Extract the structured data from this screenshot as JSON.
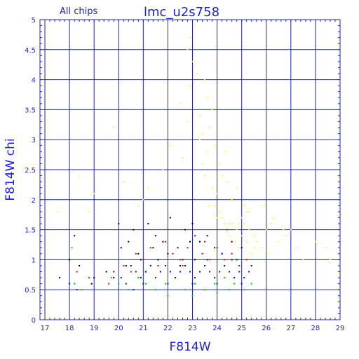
{
  "chart_data": {
    "type": "scatter",
    "title": "lmc_u2s758",
    "subtitle": "All chips",
    "xlabel": "F814W",
    "ylabel": "F814W chi",
    "xlim": [
      16.8,
      29
    ],
    "ylim": [
      0,
      5
    ],
    "xticks": [
      "17",
      "18",
      "19",
      "20",
      "21",
      "22",
      "23",
      "24",
      "25",
      "26",
      "27",
      "28",
      "29"
    ],
    "yticks": [
      "0",
      "0.5",
      "1",
      "1.5",
      "2",
      "2.5",
      "3",
      "3.5",
      "4",
      "4.5",
      "5"
    ],
    "grid": true,
    "colors": {
      "axis": "#1f1fd6",
      "grid": "#1f1fd6",
      "text": "#1f1fd6",
      "blue_points": "#0000ff",
      "green_points": "#00cc00",
      "red_points": "#ff0000",
      "black_points": "#000000",
      "yellow_points": "#ffff33"
    },
    "series": [
      {
        "color": "yellow",
        "x": [
          22.1,
          22.5,
          22.8,
          23.0,
          23.2,
          23.3,
          23.4,
          23.5,
          23.6,
          23.7,
          23.8,
          23.9,
          24.0,
          24.1,
          24.2,
          24.3,
          24.4,
          24.5,
          24.6,
          24.7,
          24.8,
          24.9,
          25.0,
          25.1,
          25.2,
          25.3,
          25.4,
          25.5,
          25.6,
          25.8,
          26.0,
          26.2,
          26.5,
          26.8,
          27.2,
          27.5,
          28.0,
          28.4,
          28.6,
          21.0,
          20.2,
          19.8,
          19.0,
          18.8,
          18.4,
          17.5,
          22.9,
          23.1,
          23.5,
          22.8,
          23.6,
          24.1,
          24.4,
          23.9,
          24.6,
          25.3,
          25.9,
          26.3,
          27.0,
          24.8,
          25.1,
          24.2,
          23.3,
          22.6,
          21.8,
          21.2,
          20.8,
          24.0,
          23.7,
          24.5,
          25.0,
          25.5,
          26.1,
          26.7,
          24.3,
          23.8,
          22.9,
          23.4,
          24.9,
          25.2
        ],
        "y": [
          2.9,
          3.6,
          4.5,
          4.3,
          4.1,
          3.0,
          2.6,
          2.4,
          2.8,
          3.2,
          2.2,
          1.9,
          2.1,
          1.8,
          1.7,
          1.6,
          1.5,
          1.4,
          1.6,
          1.3,
          1.5,
          1.2,
          1.4,
          1.6,
          1.3,
          1.5,
          1.1,
          1.4,
          1.3,
          1.2,
          1.5,
          1.6,
          1.3,
          1.4,
          1.2,
          1.0,
          1.3,
          1.2,
          1.0,
          2.0,
          2.3,
          3.2,
          2.1,
          1.8,
          2.4,
          1.8,
          4.7,
          4.9,
          4.0,
          3.3,
          3.7,
          2.6,
          2.3,
          2.9,
          2.0,
          1.8,
          1.9,
          1.7,
          1.5,
          2.2,
          1.9,
          2.4,
          3.4,
          2.7,
          2.5,
          2.2,
          1.9,
          1.7,
          1.9,
          1.6,
          1.7,
          1.2,
          1.1,
          1.5,
          2.8,
          3.5,
          3.9,
          3.1,
          1.6,
          1.8
        ]
      },
      {
        "color": "black",
        "x": [
          17.6,
          18.0,
          18.2,
          18.4,
          18.9,
          19.5,
          20.1,
          20.4,
          20.6,
          20.9,
          21.2,
          21.5,
          21.8,
          22.1,
          22.4,
          22.7,
          23.0,
          23.3,
          23.6,
          23.9,
          24.2,
          24.6,
          25.0,
          20.3,
          20.8,
          21.1,
          21.6,
          22.0,
          22.5,
          23.1,
          19.8,
          20.0,
          21.4,
          22.9
        ],
        "y": [
          0.7,
          1.0,
          1.4,
          0.9,
          0.6,
          0.8,
          1.2,
          1.3,
          1.5,
          1.0,
          1.6,
          1.4,
          1.3,
          1.7,
          1.2,
          1.5,
          1.6,
          1.3,
          1.4,
          1.2,
          1.1,
          1.3,
          1.2,
          0.9,
          1.1,
          0.8,
          1.0,
          1.1,
          0.9,
          1.0,
          0.7,
          1.6,
          1.2,
          1.3
        ]
      },
      {
        "color": "red",
        "x": [
          18.3,
          18.8,
          19.6,
          20.2,
          20.5,
          20.7,
          21.0,
          21.3,
          21.6,
          21.9,
          22.2,
          22.5,
          22.8,
          23.1,
          23.4,
          23.7,
          24.0,
          24.3,
          24.6,
          24.9,
          25.2,
          20.9,
          21.7,
          22.6,
          23.5,
          24.4
        ],
        "y": [
          0.8,
          0.7,
          0.6,
          0.9,
          0.8,
          1.1,
          1.0,
          1.2,
          0.9,
          1.3,
          1.1,
          1.0,
          1.2,
          1.4,
          1.1,
          1.0,
          1.2,
          1.0,
          1.1,
          0.9,
          1.0,
          0.7,
          0.8,
          0.9,
          1.3,
          1.5
        ]
      },
      {
        "color": "green",
        "x": [
          18.1,
          18.2,
          18.5,
          19.7,
          20.0,
          20.4,
          20.8,
          21.1,
          21.5,
          21.9,
          22.3,
          22.7,
          23.1,
          23.5,
          23.9,
          24.3,
          24.7,
          25.1,
          25.4,
          22.0,
          23.0,
          24.0,
          24.5
        ],
        "y": [
          1.2,
          0.6,
          0.5,
          0.7,
          0.6,
          0.5,
          0.7,
          0.6,
          0.5,
          0.6,
          0.7,
          0.5,
          0.6,
          0.5,
          0.6,
          0.7,
          0.6,
          0.5,
          0.6,
          0.4,
          0.4,
          0.45,
          0.5
        ]
      },
      {
        "color": "blue",
        "x": [
          18.0,
          18.3,
          19.0,
          19.8,
          20.1,
          20.3,
          20.5,
          20.7,
          20.9,
          21.1,
          21.3,
          21.5,
          21.7,
          21.9,
          22.1,
          22.3,
          22.5,
          22.7,
          22.9,
          23.1,
          23.3,
          23.5,
          23.7,
          23.9,
          24.1,
          24.3,
          24.5,
          24.7,
          24.9,
          25.1,
          25.3,
          25.4,
          21.0,
          22.0,
          23.0,
          24.0,
          25.0,
          21.6,
          22.6,
          23.6,
          24.6,
          20.6,
          24.2,
          24.8
        ],
        "y": [
          0.6,
          0.5,
          0.7,
          0.8,
          0.7,
          0.6,
          0.9,
          0.8,
          0.7,
          0.8,
          0.9,
          0.7,
          0.8,
          0.9,
          0.8,
          0.7,
          0.8,
          0.9,
          0.8,
          0.7,
          0.8,
          0.9,
          0.8,
          0.7,
          0.8,
          0.9,
          0.8,
          0.7,
          0.8,
          0.7,
          0.8,
          0.9,
          0.6,
          0.6,
          0.6,
          0.6,
          0.6,
          1.0,
          1.0,
          1.0,
          1.0,
          0.5,
          1.1,
          1.0
        ]
      }
    ]
  }
}
